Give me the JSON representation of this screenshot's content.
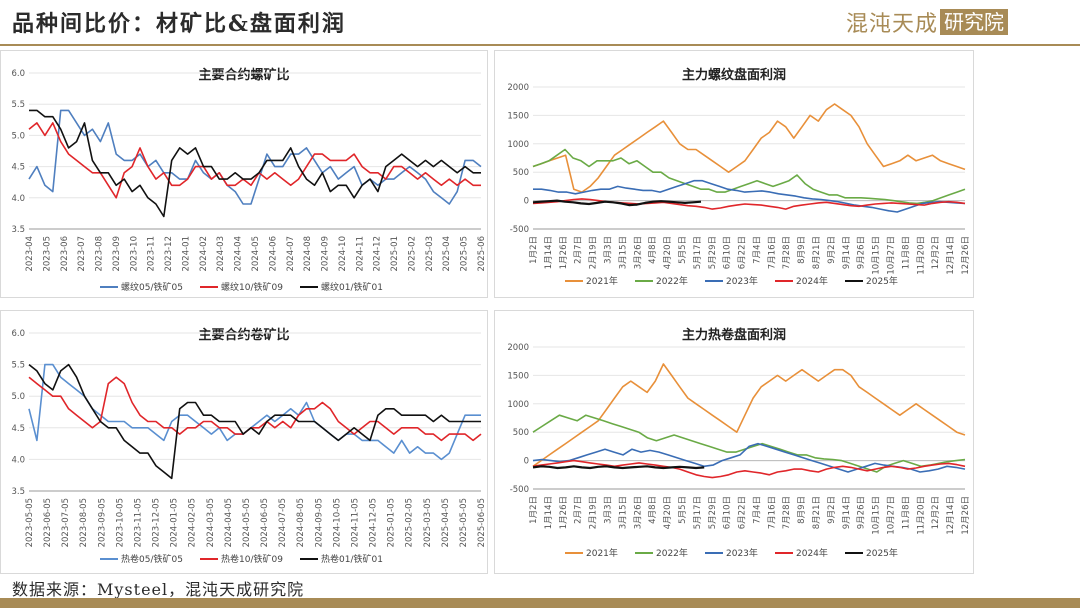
{
  "header": {
    "title": "品种间比价：材矿比&盘面利润",
    "logo_text": "混沌天成",
    "logo_box": "研究院"
  },
  "footer": {
    "source": "数据来源：Mysteel，混沌天成研究院"
  },
  "colors": {
    "accent": "#a88b56",
    "blue": "#4f7fbf",
    "red": "#e0262a",
    "black": "#111111",
    "orange": "#e8903a",
    "green": "#6aaa46",
    "darkblue": "#3a6db5"
  },
  "chart_data": [
    {
      "id": "rebar-ratio",
      "type": "line",
      "title": "主要合约螺矿比",
      "ylim": [
        3.5,
        6.0
      ],
      "yticks": [
        "6.0",
        "5.5",
        "5.0",
        "4.5",
        "4.0",
        "3.5"
      ],
      "xticks": [
        "2023-04",
        "2023-05",
        "2023-06",
        "2023-07",
        "2023-08",
        "2023-09",
        "2023-10",
        "2023-11",
        "2023-12",
        "2024-01",
        "2024-02",
        "2024-03",
        "2024-04",
        "2024-05",
        "2024-06",
        "2024-07",
        "2024-08",
        "2024-09",
        "2024-10",
        "2024-11",
        "2024-12",
        "2025-01",
        "2025-02",
        "2025-03",
        "2025-04",
        "2025-05",
        "2025-06"
      ],
      "series": [
        {
          "name": "螺纹05/铁矿05",
          "color": "#4f7fbf",
          "values": [
            4.3,
            4.5,
            4.2,
            4.1,
            5.4,
            5.4,
            5.2,
            5.0,
            5.1,
            4.9,
            5.2,
            4.7,
            4.6,
            4.6,
            4.7,
            4.5,
            4.6,
            4.4,
            4.4,
            4.3,
            4.3,
            4.6,
            4.4,
            4.3,
            4.4,
            4.2,
            4.1,
            3.9,
            3.9,
            4.3,
            4.7,
            4.5,
            4.5,
            4.7,
            4.7,
            4.8,
            4.6,
            4.4,
            4.5,
            4.3,
            4.4,
            4.5,
            4.2,
            4.3,
            4.2,
            4.3,
            4.3,
            4.4,
            4.5,
            4.4,
            4.3,
            4.1,
            4.0,
            3.9,
            4.1,
            4.6,
            4.6,
            4.5
          ]
        },
        {
          "name": "螺纹10/铁矿09",
          "color": "#e0262a",
          "values": [
            5.1,
            5.2,
            5.0,
            5.2,
            4.9,
            4.7,
            4.6,
            4.5,
            4.4,
            4.4,
            4.2,
            4.0,
            4.4,
            4.5,
            4.8,
            4.5,
            4.3,
            4.4,
            4.2,
            4.2,
            4.3,
            4.5,
            4.5,
            4.3,
            4.4,
            4.2,
            4.2,
            4.3,
            4.2,
            4.4,
            4.3,
            4.4,
            4.3,
            4.2,
            4.3,
            4.5,
            4.7,
            4.7,
            4.6,
            4.6,
            4.6,
            4.7,
            4.5,
            4.4,
            4.4,
            4.3,
            4.5,
            4.5,
            4.4,
            4.3,
            4.4,
            4.3,
            4.2,
            4.3,
            4.2,
            4.3,
            4.2,
            4.2
          ]
        },
        {
          "name": "螺纹01/铁矿01",
          "color": "#111111",
          "values": [
            5.4,
            5.4,
            5.3,
            5.3,
            5.1,
            4.8,
            4.9,
            5.2,
            4.6,
            4.4,
            4.4,
            4.2,
            4.3,
            4.1,
            4.2,
            4.0,
            3.9,
            3.7,
            4.6,
            4.8,
            4.7,
            4.8,
            4.5,
            4.5,
            4.3,
            4.3,
            4.4,
            4.3,
            4.3,
            4.4,
            4.6,
            4.6,
            4.6,
            4.8,
            4.5,
            4.3,
            4.2,
            4.4,
            4.1,
            4.2,
            4.2,
            4.0,
            4.2,
            4.3,
            4.1,
            4.5,
            4.6,
            4.7,
            4.6,
            4.5,
            4.6,
            4.5,
            4.6,
            4.5,
            4.4,
            4.5,
            4.4,
            4.4
          ]
        }
      ]
    },
    {
      "id": "rebar-profit",
      "type": "line",
      "title": "主力螺纹盘面利润",
      "ylim": [
        -500,
        2000
      ],
      "yticks": [
        "2000",
        "1500",
        "1000",
        "500",
        "0",
        "-500"
      ],
      "xticks": [
        "1月2日",
        "1月14日",
        "1月26日",
        "2月7日",
        "2月19日",
        "3月3日",
        "3月15日",
        "3月26日",
        "4月8日",
        "4月20日",
        "5月5日",
        "5月17日",
        "5月29日",
        "6月10日",
        "6月22日",
        "7月4日",
        "7月16日",
        "7月28日",
        "8月9日",
        "8月21日",
        "9月2日",
        "9月14日",
        "9月26日",
        "10月15日",
        "10月27日",
        "11月8日",
        "11月20日",
        "12月2日",
        "12月14日",
        "12月26日"
      ],
      "series": [
        {
          "name": "2021年",
          "color": "#e8903a",
          "values": [
            600,
            650,
            700,
            750,
            800,
            200,
            150,
            250,
            400,
            600,
            800,
            900,
            1000,
            1100,
            1200,
            1300,
            1400,
            1200,
            1000,
            900,
            900,
            800,
            700,
            600,
            500,
            600,
            700,
            900,
            1100,
            1200,
            1400,
            1300,
            1100,
            1300,
            1500,
            1400,
            1600,
            1700,
            1600,
            1500,
            1300,
            1000,
            800,
            600,
            650,
            700,
            800,
            700,
            750,
            800,
            700,
            650,
            600,
            550
          ]
        },
        {
          "name": "2022年",
          "color": "#6aaa46",
          "values": [
            600,
            650,
            700,
            800,
            900,
            750,
            700,
            600,
            700,
            700,
            700,
            750,
            650,
            700,
            600,
            500,
            500,
            400,
            350,
            300,
            250,
            200,
            200,
            150,
            150,
            200,
            250,
            300,
            350,
            300,
            250,
            300,
            350,
            450,
            300,
            200,
            150,
            100,
            100,
            50,
            50,
            50,
            40,
            30,
            20,
            0,
            -20,
            -40,
            -50,
            -30,
            0,
            50,
            100,
            150,
            200
          ]
        },
        {
          "name": "2023年",
          "color": "#3a6db5",
          "values": [
            200,
            200,
            180,
            150,
            150,
            120,
            150,
            180,
            200,
            200,
            250,
            220,
            200,
            180,
            180,
            150,
            200,
            250,
            300,
            350,
            350,
            300,
            250,
            200,
            180,
            150,
            160,
            170,
            150,
            120,
            100,
            80,
            50,
            30,
            20,
            0,
            -20,
            -50,
            -80,
            -100,
            -120,
            -150,
            -180,
            -200,
            -150,
            -100,
            -50,
            -30,
            -20,
            -30,
            -40,
            -50
          ]
        },
        {
          "name": "2024年",
          "color": "#e0262a",
          "values": [
            -50,
            -40,
            -30,
            -20,
            0,
            20,
            30,
            20,
            0,
            -20,
            -30,
            -40,
            -50,
            -60,
            -50,
            -40,
            -30,
            -50,
            -70,
            -90,
            -100,
            -120,
            -150,
            -130,
            -100,
            -80,
            -60,
            -70,
            -80,
            -100,
            -120,
            -150,
            -100,
            -80,
            -60,
            -40,
            -30,
            -50,
            -70,
            -90,
            -100,
            -80,
            -60,
            -50,
            -40,
            -50,
            -60,
            -70,
            -80,
            -50,
            -30,
            -20,
            -30,
            -50
          ]
        },
        {
          "name": "2025年",
          "color": "#111111",
          "values": [
            -30,
            -20,
            -10,
            0,
            -20,
            -30,
            -50,
            -60,
            -40,
            -20,
            -30,
            -50,
            -80,
            -70,
            -40,
            -20,
            -10,
            -20,
            -30,
            -40,
            -30,
            -20
          ]
        }
      ]
    },
    {
      "id": "hrc-ratio",
      "type": "line",
      "title": "主要合约卷矿比",
      "ylim": [
        3.5,
        6.0
      ],
      "yticks": [
        "6.0",
        "5.5",
        "5.0",
        "4.5",
        "4.0",
        "3.5"
      ],
      "xticks": [
        "2023-05-05",
        "2023-06-05",
        "2023-07-05",
        "2023-08-05",
        "2023-09-05",
        "2023-10-05",
        "2023-11-05",
        "2023-12-05",
        "2024-01-05",
        "2024-02-05",
        "2024-03-05",
        "2024-04-05",
        "2024-05-05",
        "2024-06-05",
        "2024-07-05",
        "2024-08-05",
        "2024-09-05",
        "2024-10-05",
        "2024-11-05",
        "2024-12-05",
        "2025-01-05",
        "2025-02-05",
        "2025-03-05",
        "2025-04-05",
        "2025-05-05",
        "2025-06-05"
      ],
      "series": [
        {
          "name": "热卷05/铁矿05",
          "color": "#5a8fd0",
          "values": [
            4.8,
            4.3,
            5.5,
            5.5,
            5.3,
            5.2,
            5.1,
            5.0,
            4.8,
            4.7,
            4.6,
            4.6,
            4.6,
            4.5,
            4.5,
            4.5,
            4.4,
            4.3,
            4.6,
            4.7,
            4.7,
            4.6,
            4.5,
            4.4,
            4.5,
            4.3,
            4.4,
            4.4,
            4.5,
            4.6,
            4.7,
            4.6,
            4.7,
            4.8,
            4.7,
            4.9,
            4.6,
            4.5,
            4.4,
            4.3,
            4.4,
            4.4,
            4.3,
            4.3,
            4.3,
            4.2,
            4.1,
            4.3,
            4.1,
            4.2,
            4.1,
            4.1,
            4.0,
            4.1,
            4.4,
            4.7,
            4.7,
            4.7
          ]
        },
        {
          "name": "热卷10/铁矿09",
          "color": "#e0262a",
          "values": [
            5.3,
            5.2,
            5.1,
            5.0,
            5.0,
            4.8,
            4.7,
            4.6,
            4.5,
            4.6,
            5.2,
            5.3,
            5.2,
            4.9,
            4.7,
            4.6,
            4.6,
            4.5,
            4.5,
            4.4,
            4.5,
            4.5,
            4.6,
            4.6,
            4.5,
            4.5,
            4.4,
            4.4,
            4.5,
            4.5,
            4.6,
            4.5,
            4.6,
            4.5,
            4.7,
            4.8,
            4.8,
            4.9,
            4.8,
            4.6,
            4.5,
            4.4,
            4.5,
            4.6,
            4.6,
            4.5,
            4.4,
            4.5,
            4.5,
            4.5,
            4.4,
            4.4,
            4.3,
            4.4,
            4.4,
            4.4,
            4.3,
            4.4
          ]
        },
        {
          "name": "热卷01/铁矿01",
          "color": "#111111",
          "values": [
            5.5,
            5.4,
            5.2,
            5.1,
            5.4,
            5.5,
            5.3,
            5.0,
            4.8,
            4.6,
            4.5,
            4.5,
            4.3,
            4.2,
            4.1,
            4.1,
            3.9,
            3.8,
            3.7,
            4.8,
            4.9,
            4.9,
            4.7,
            4.7,
            4.6,
            4.6,
            4.6,
            4.4,
            4.5,
            4.4,
            4.6,
            4.7,
            4.7,
            4.7,
            4.6,
            4.6,
            4.6,
            4.5,
            4.4,
            4.3,
            4.4,
            4.5,
            4.4,
            4.3,
            4.7,
            4.8,
            4.8,
            4.7,
            4.7,
            4.7,
            4.7,
            4.6,
            4.7,
            4.6,
            4.6,
            4.6,
            4.6,
            4.6
          ]
        }
      ]
    },
    {
      "id": "hrc-profit",
      "type": "line",
      "title": "主力热卷盘面利润",
      "ylim": [
        -500,
        2000
      ],
      "yticks": [
        "2000",
        "1500",
        "1000",
        "500",
        "0",
        "-500"
      ],
      "xticks": [
        "1月2日",
        "1月14日",
        "1月26日",
        "2月7日",
        "2月19日",
        "3月3日",
        "3月15日",
        "3月26日",
        "4月8日",
        "4月20日",
        "5月5日",
        "5月17日",
        "5月29日",
        "6月10日",
        "6月22日",
        "7月4日",
        "7月16日",
        "7月28日",
        "8月9日",
        "8月21日",
        "9月2日",
        "9月14日",
        "9月26日",
        "10月15日",
        "10月27日",
        "11月8日",
        "11月20日",
        "12月2日",
        "12月14日",
        "12月26日"
      ],
      "series": [
        {
          "name": "2021年",
          "color": "#e8903a",
          "values": [
            -100,
            0,
            100,
            200,
            300,
            400,
            500,
            600,
            700,
            900,
            1100,
            1300,
            1400,
            1300,
            1200,
            1400,
            1700,
            1500,
            1300,
            1100,
            1000,
            900,
            800,
            700,
            600,
            500,
            800,
            1100,
            1300,
            1400,
            1500,
            1400,
            1500,
            1600,
            1500,
            1400,
            1500,
            1600,
            1600,
            1500,
            1300,
            1200,
            1100,
            1000,
            900,
            800,
            900,
            1000,
            900,
            800,
            700,
            600,
            500,
            450
          ]
        },
        {
          "name": "2022年",
          "color": "#6aaa46",
          "values": [
            500,
            600,
            700,
            800,
            750,
            700,
            800,
            750,
            700,
            650,
            600,
            550,
            500,
            400,
            350,
            400,
            450,
            400,
            350,
            300,
            250,
            200,
            150,
            150,
            200,
            250,
            300,
            250,
            200,
            150,
            100,
            100,
            50,
            30,
            20,
            0,
            -50,
            -100,
            -150,
            -200,
            -100,
            -50,
            0,
            -50,
            -100,
            -80,
            -50,
            -20,
            0,
            20
          ]
        },
        {
          "name": "2023年",
          "color": "#3a6db5",
          "values": [
            0,
            20,
            0,
            -20,
            0,
            50,
            100,
            150,
            200,
            150,
            100,
            200,
            150,
            180,
            150,
            100,
            50,
            0,
            -50,
            -100,
            -80,
            0,
            50,
            100,
            250,
            300,
            250,
            200,
            150,
            100,
            50,
            0,
            -50,
            -100,
            -150,
            -200,
            -150,
            -100,
            -50,
            -80,
            -100,
            -120,
            -150,
            -200,
            -180,
            -150,
            -100,
            -120,
            -150
          ]
        },
        {
          "name": "2024年",
          "color": "#e0262a",
          "values": [
            -100,
            -80,
            -60,
            -40,
            -20,
            0,
            -20,
            -40,
            -60,
            -80,
            -100,
            -80,
            -60,
            -40,
            -60,
            -80,
            -100,
            -120,
            -150,
            -200,
            -250,
            -280,
            -300,
            -280,
            -250,
            -200,
            -180,
            -200,
            -220,
            -250,
            -200,
            -180,
            -150,
            -150,
            -180,
            -200,
            -150,
            -120,
            -100,
            -120,
            -150,
            -180,
            -150,
            -120,
            -100,
            -120,
            -150,
            -130,
            -100,
            -80,
            -60,
            -50,
            -70,
            -100
          ]
        },
        {
          "name": "2025年",
          "color": "#111111",
          "values": [
            -120,
            -100,
            -110,
            -130,
            -120,
            -100,
            -120,
            -130,
            -110,
            -100,
            -120,
            -130,
            -120,
            -110,
            -100,
            -120,
            -130,
            -120,
            -110,
            -120,
            -130,
            -120
          ]
        }
      ]
    }
  ]
}
